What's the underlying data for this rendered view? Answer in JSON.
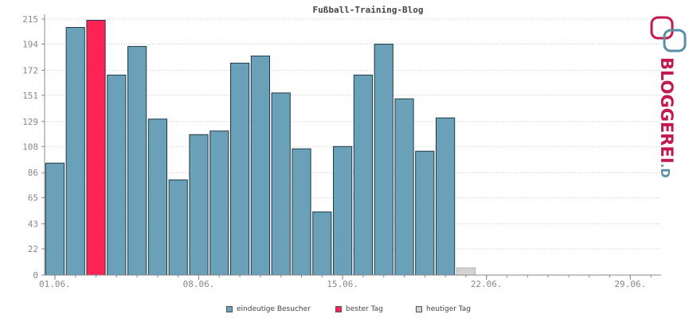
{
  "chart_data": {
    "type": "bar",
    "title": "Fußball-Training-Blog",
    "xlabel": "",
    "ylabel": "",
    "ylim": [
      0,
      215
    ],
    "yticks": [
      0,
      22,
      43,
      65,
      86,
      108,
      129,
      151,
      172,
      194,
      215
    ],
    "x_days": 30,
    "xticks": [
      {
        "day": 1,
        "label": "01.06."
      },
      {
        "day": 8,
        "label": "08.06."
      },
      {
        "day": 15,
        "label": "15.06."
      },
      {
        "day": 22,
        "label": "22.06."
      },
      {
        "day": 29,
        "label": "29.06."
      }
    ],
    "series": [
      {
        "name": "eindeutige Besucher",
        "color": "#6aa0b8",
        "values": [
          94,
          208,
          214,
          168,
          192,
          131,
          80,
          118,
          121,
          178,
          184,
          153,
          106,
          53,
          108,
          168,
          194,
          148,
          104,
          132,
          6,
          0,
          0,
          0,
          0,
          0,
          0,
          0,
          0,
          0
        ]
      }
    ],
    "best_day_index": 2,
    "today_index": 20,
    "colors": {
      "visitors": "#6aa0b8",
      "best": "#ff2255",
      "today": "#d3d3d3",
      "grid": "#c8c8c8",
      "axis": "#888888"
    },
    "grid": true,
    "legend_position": "bottom"
  },
  "legend": {
    "items": [
      {
        "label": "eindeutige Besucher",
        "color": "#6aa0b8"
      },
      {
        "label": "bester Tag",
        "color": "#ff2255"
      },
      {
        "label": "heutiger Tag",
        "color": "#d3d3d3"
      }
    ]
  },
  "logo": {
    "text_main": "BLOGGEREI",
    "text_suffix": ".DE",
    "color_main": "#c21a4e",
    "color_suffix": "#5a8fa8"
  }
}
